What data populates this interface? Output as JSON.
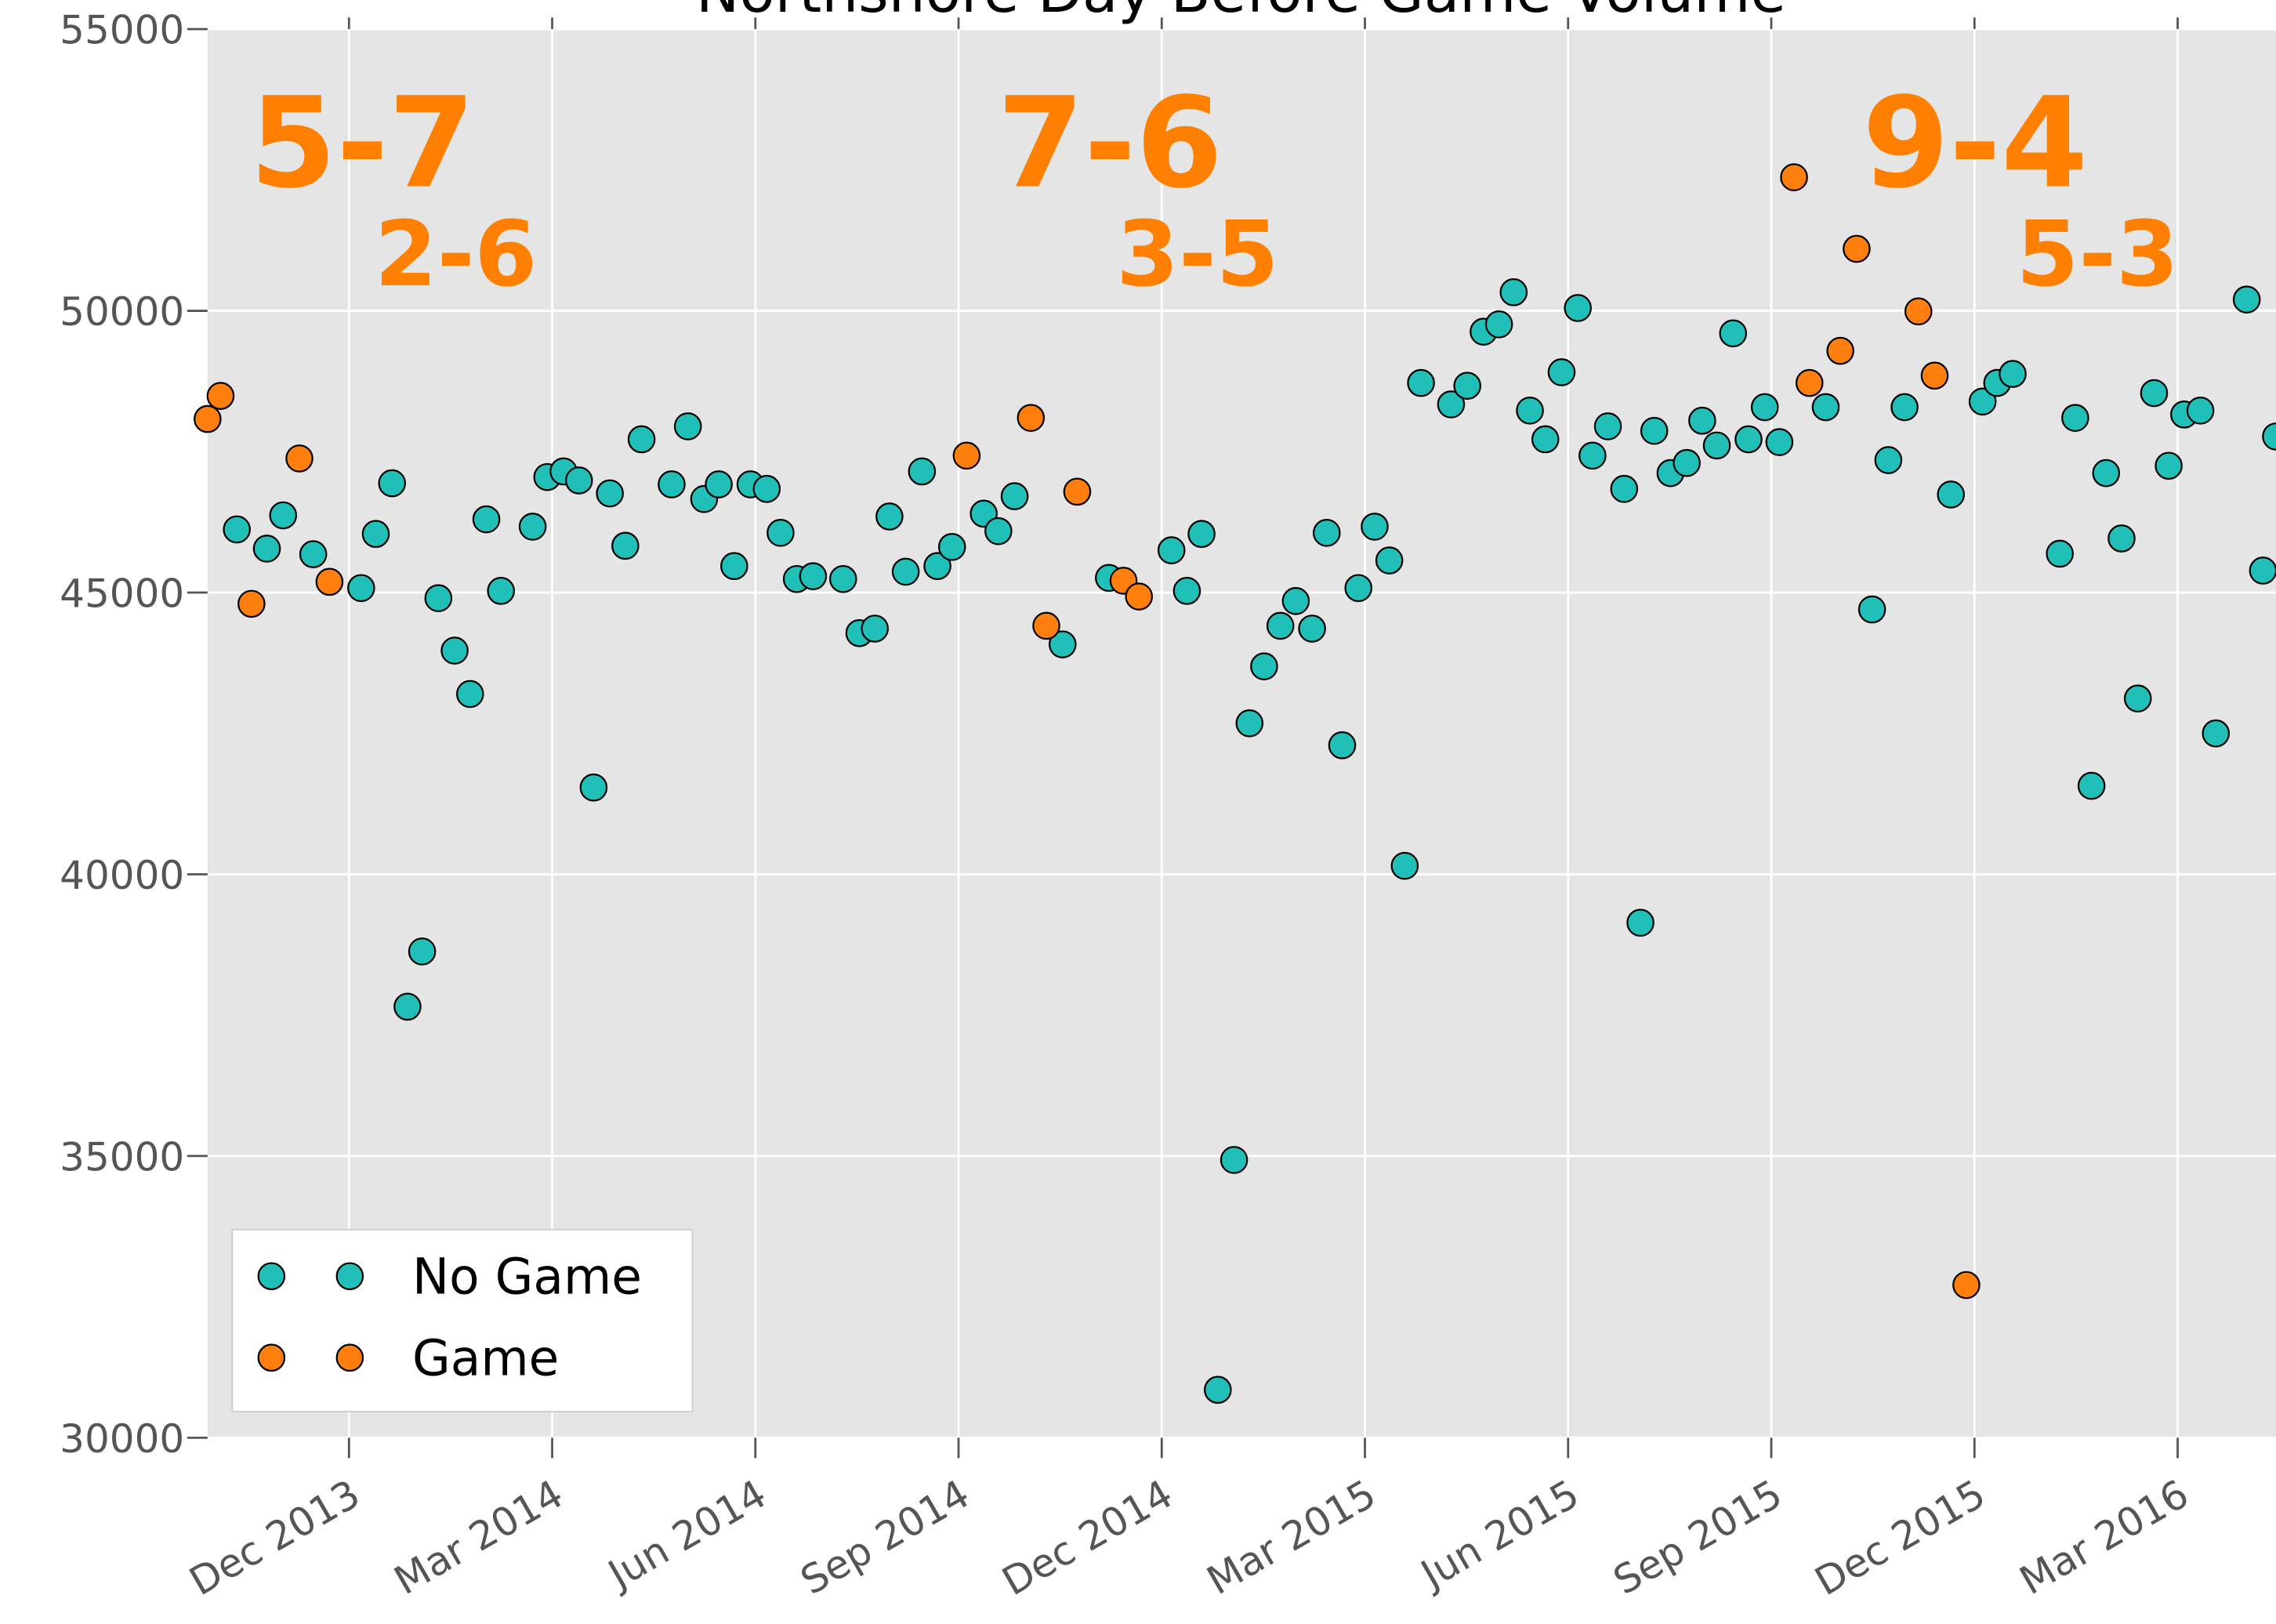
{
  "chart_data": {
    "type": "scatter",
    "title": "Northshore Day Before Game Volume",
    "xlim": [
      2013.743,
      2016.288
    ],
    "ylim": [
      30000,
      55000
    ],
    "xticks": [
      {
        "value": 2013.917,
        "label": "Dec 2013"
      },
      {
        "value": 2014.167,
        "label": "Mar 2014"
      },
      {
        "value": 2014.417,
        "label": "Jun 2014"
      },
      {
        "value": 2014.667,
        "label": "Sep 2014"
      },
      {
        "value": 2014.917,
        "label": "Dec 2014"
      },
      {
        "value": 2015.167,
        "label": "Mar 2015"
      },
      {
        "value": 2015.417,
        "label": "Jun 2015"
      },
      {
        "value": 2015.667,
        "label": "Sep 2015"
      },
      {
        "value": 2015.917,
        "label": "Dec 2015"
      },
      {
        "value": 2016.167,
        "label": "Mar 2016"
      }
    ],
    "yticks": [
      30000,
      35000,
      40000,
      45000,
      50000,
      55000
    ],
    "grid": true,
    "legend": "lower left",
    "annotations": [
      "5-7",
      "2-6",
      "7-6",
      "3-5",
      "9-4",
      "5-3"
    ],
    "annotation_color": "#ff8000",
    "series": [
      {
        "name": "No Game",
        "color": "#20c0b8",
        "x": [
          2013.779,
          2013.816,
          2013.836,
          2013.873,
          2013.932,
          2013.95,
          2013.97,
          2013.989,
          2014.007,
          2014.027,
          2014.047,
          2014.066,
          2014.086,
          2014.104,
          2014.143,
          2014.161,
          2014.181,
          2014.2,
          2014.218,
          2014.238,
          2014.257,
          2014.277,
          2014.314,
          2014.334,
          2014.354,
          2014.372,
          2014.391,
          2014.411,
          2014.431,
          2014.448,
          2014.468,
          2014.488,
          2014.525,
          2014.545,
          2014.564,
          2014.582,
          2014.602,
          2014.622,
          2014.641,
          2014.659,
          2014.698,
          2014.716,
          2014.736,
          2014.795,
          2014.852,
          2014.929,
          2014.948,
          2014.966,
          2014.986,
          2015.006,
          2015.025,
          2015.043,
          2015.063,
          2015.082,
          2015.102,
          2015.12,
          2015.139,
          2015.159,
          2015.179,
          2015.197,
          2015.216,
          2015.236,
          2015.273,
          2015.293,
          2015.313,
          2015.332,
          2015.35,
          2015.37,
          2015.389,
          2015.409,
          2015.429,
          2015.447,
          2015.466,
          2015.486,
          2015.506,
          2015.523,
          2015.543,
          2015.563,
          2015.582,
          2015.6,
          2015.62,
          2015.639,
          2015.659,
          2015.677,
          2015.734,
          2015.791,
          2015.811,
          2015.831,
          2015.888,
          2015.927,
          2015.945,
          2015.964,
          2016.022,
          2016.041,
          2016.061,
          2016.079,
          2016.098,
          2016.118,
          2016.138,
          2016.156,
          2016.175,
          2016.195,
          2016.214,
          2016.252,
          2016.272,
          2016.288
        ],
        "values": [
          46120,
          45780,
          46370,
          45680,
          45080,
          46040,
          46940,
          37650,
          38630,
          44900,
          43970,
          43200,
          46300,
          45030,
          46170,
          47050,
          47150,
          46990,
          41540,
          46760,
          45830,
          47720,
          46920,
          47950,
          46660,
          46920,
          45470,
          46920,
          46840,
          46060,
          45240,
          45290,
          45240,
          44280,
          44360,
          46350,
          45370,
          47150,
          45470,
          45810,
          46400,
          46090,
          46710,
          44080,
          45260,
          45750,
          45030,
          46040,
          30850,
          34930,
          42680,
          43690,
          44410,
          44850,
          44360,
          46060,
          42290,
          45080,
          46170,
          45570,
          40150,
          48720,
          48340,
          48670,
          49630,
          49760,
          50330,
          48230,
          47720,
          48910,
          50050,
          47430,
          47950,
          46840,
          39140,
          47870,
          47120,
          47300,
          48050,
          47610,
          49600,
          47720,
          48290,
          47670,
          48290,
          44700,
          47350,
          48290,
          46740,
          48390,
          48720,
          48880,
          45690,
          48100,
          41570,
          47120,
          45960,
          43120,
          48540,
          47250,
          48160,
          48230,
          42500,
          50200,
          45390,
          47770
        ]
      },
      {
        "name": "Game",
        "color": "#ff7f0e",
        "x": [
          2013.743,
          2013.759,
          2013.797,
          2013.856,
          2013.893,
          2014.677,
          2014.756,
          2014.775,
          2014.813,
          2014.87,
          2014.889,
          2015.695,
          2015.714,
          2015.752,
          2015.772,
          2015.848,
          2015.868,
          2015.907
        ],
        "values": [
          48080,
          48490,
          44800,
          47380,
          45190,
          47430,
          48100,
          44410,
          46790,
          45210,
          44930,
          52370,
          48720,
          49290,
          51100,
          49990,
          48850,
          32710
        ]
      }
    ]
  }
}
